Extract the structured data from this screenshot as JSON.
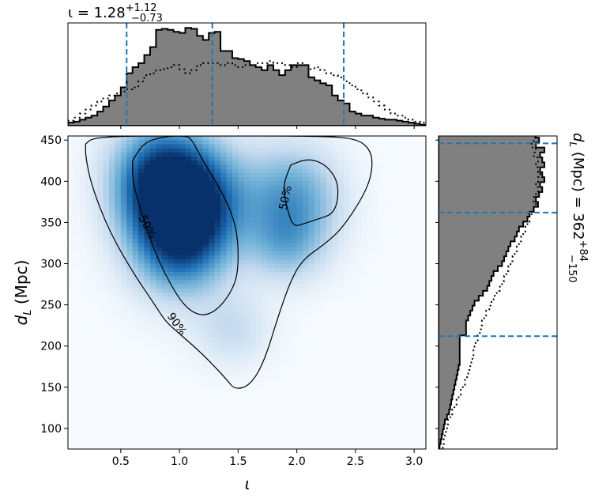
{
  "chart_data": [
    {
      "panel": "top-marginal",
      "type": "area",
      "title_prefix": "ι = 1.28",
      "title_sup": "+1.12",
      "title_sub": "−0.73",
      "xlim": [
        0.05,
        3.1
      ],
      "median": 1.28,
      "lower": 0.55,
      "upper": 2.4,
      "hist_x": [
        0.05,
        0.1,
        0.15,
        0.2,
        0.25,
        0.3,
        0.35,
        0.4,
        0.45,
        0.5,
        0.55,
        0.6,
        0.65,
        0.7,
        0.75,
        0.8,
        0.85,
        0.9,
        0.95,
        1.0,
        1.05,
        1.1,
        1.15,
        1.2,
        1.25,
        1.3,
        1.35,
        1.4,
        1.45,
        1.5,
        1.55,
        1.6,
        1.65,
        1.7,
        1.75,
        1.8,
        1.85,
        1.9,
        1.95,
        2.0,
        2.05,
        2.1,
        2.15,
        2.2,
        2.25,
        2.3,
        2.35,
        2.4,
        2.45,
        2.5,
        2.55,
        2.6,
        2.65,
        2.7,
        2.75,
        2.8,
        2.85,
        2.9,
        2.95,
        3.0,
        3.05
      ],
      "hist": [
        3,
        4,
        6,
        8,
        10,
        14,
        19,
        25,
        30,
        38,
        52,
        58,
        62,
        70,
        78,
        95,
        96,
        95,
        93,
        92,
        97,
        96,
        89,
        85,
        92,
        93,
        74,
        74,
        67,
        66,
        64,
        60,
        58,
        55,
        60,
        55,
        50,
        55,
        60,
        60,
        60,
        48,
        45,
        42,
        40,
        30,
        25,
        22,
        14,
        12,
        10,
        10,
        8,
        7,
        6,
        6,
        5,
        4,
        3,
        2,
        1
      ],
      "prior": [
        5,
        8,
        12,
        16,
        20,
        24,
        27,
        30,
        32,
        34,
        36,
        38,
        44,
        50,
        52,
        55,
        56,
        58,
        60,
        56,
        52,
        55,
        60,
        62,
        62,
        62,
        60,
        62,
        60,
        58,
        60,
        60,
        62,
        62,
        64,
        62,
        62,
        60,
        58,
        62,
        60,
        56,
        58,
        55,
        52,
        50,
        48,
        44,
        40,
        36,
        32,
        28,
        24,
        20,
        16,
        12,
        10,
        8,
        6,
        4,
        3
      ]
    },
    {
      "panel": "joint",
      "type": "heatmap",
      "xlabel": "ι",
      "ylabel": "d_L (Mpc)",
      "xlim": [
        0.05,
        3.1
      ],
      "ylim": [
        75,
        455
      ],
      "xticks": [
        0.5,
        1.0,
        1.5,
        2.0,
        2.5,
        3.0
      ],
      "xtick_labels": [
        "0.5",
        "1.0",
        "1.5",
        "2.0",
        "2.5",
        "3.0"
      ],
      "yticks": [
        100,
        150,
        200,
        250,
        300,
        350,
        400,
        450
      ],
      "ytick_labels": [
        "100",
        "150",
        "200",
        "250",
        "300",
        "350",
        "400",
        "450"
      ],
      "colormap": "Blues",
      "density_peaks": [
        {
          "x": 0.85,
          "y": 400,
          "weight": 1.0
        },
        {
          "x": 1.0,
          "y": 330,
          "weight": 0.85
        },
        {
          "x": 1.2,
          "y": 380,
          "weight": 0.55
        },
        {
          "x": 1.95,
          "y": 375,
          "weight": 0.55
        },
        {
          "x": 1.9,
          "y": 320,
          "weight": 0.25
        },
        {
          "x": 1.45,
          "y": 220,
          "weight": 0.2
        }
      ],
      "contours": [
        {
          "label": "90%",
          "points": [
            [
              0.2,
              445
            ],
            [
              0.25,
              452
            ],
            [
              0.5,
              455
            ],
            [
              1.2,
              455
            ],
            [
              2.2,
              455
            ],
            [
              2.5,
              452
            ],
            [
              2.62,
              440
            ],
            [
              2.65,
              420
            ],
            [
              2.6,
              390
            ],
            [
              2.4,
              345
            ],
            [
              2.25,
              325
            ],
            [
              2.05,
              305
            ],
            [
              1.95,
              280
            ],
            [
              1.85,
              240
            ],
            [
              1.72,
              180
            ],
            [
              1.6,
              152
            ],
            [
              1.47,
              147
            ],
            [
              1.4,
              160
            ],
            [
              1.2,
              190
            ],
            [
              1.0,
              215
            ],
            [
              0.88,
              230
            ],
            [
              0.8,
              248
            ],
            [
              0.6,
              290
            ],
            [
              0.4,
              340
            ],
            [
              0.25,
              395
            ],
            [
              0.2,
              430
            ],
            [
              0.2,
              445
            ]
          ]
        },
        {
          "label": "50%",
          "points": [
            [
              0.6,
              425
            ],
            [
              0.7,
              448
            ],
            [
              0.9,
              455
            ],
            [
              1.05,
              455
            ],
            [
              1.1,
              452
            ],
            [
              1.2,
              425
            ],
            [
              1.35,
              390
            ],
            [
              1.45,
              360
            ],
            [
              1.5,
              330
            ],
            [
              1.5,
              290
            ],
            [
              1.45,
              268
            ],
            [
              1.35,
              248
            ],
            [
              1.25,
              238
            ],
            [
              1.15,
              238
            ],
            [
              1.05,
              248
            ],
            [
              0.95,
              268
            ],
            [
              0.8,
              310
            ],
            [
              0.68,
              360
            ],
            [
              0.6,
              400
            ],
            [
              0.6,
              425
            ]
          ]
        },
        {
          "label": "50%",
          "points": [
            [
              1.95,
              420
            ],
            [
              2.1,
              428
            ],
            [
              2.25,
              420
            ],
            [
              2.35,
              400
            ],
            [
              2.35,
              375
            ],
            [
              2.3,
              360
            ],
            [
              2.2,
              355
            ],
            [
              2.05,
              348
            ],
            [
              1.97,
              345
            ],
            [
              1.92,
              365
            ],
            [
              1.88,
              395
            ],
            [
              1.95,
              420
            ]
          ]
        }
      ]
    },
    {
      "panel": "right-marginal",
      "type": "area",
      "orientation": "horizontal",
      "title_prefix": "d_L (Mpc) = 362",
      "title_sup": "+84",
      "title_sub": "−150",
      "ylim": [
        75,
        455
      ],
      "median": 362,
      "lower": 212,
      "upper": 446,
      "hist_y": [
        75,
        81,
        87,
        93,
        99,
        105,
        111,
        117,
        123,
        129,
        135,
        141,
        147,
        153,
        159,
        165,
        171,
        177,
        183,
        189,
        195,
        201,
        207,
        213,
        219,
        225,
        231,
        237,
        243,
        249,
        255,
        261,
        267,
        273,
        279,
        285,
        291,
        297,
        303,
        309,
        315,
        321,
        327,
        333,
        339,
        345,
        351,
        357,
        363,
        369,
        375,
        381,
        387,
        393,
        399,
        405,
        411,
        417,
        423,
        429,
        435,
        441,
        447,
        453
      ],
      "hist": [
        1,
        2,
        3,
        4,
        5,
        6,
        8,
        10,
        11,
        12,
        13,
        14,
        15,
        16,
        17,
        18,
        19,
        20,
        20,
        20,
        20,
        20,
        20,
        26,
        26,
        26,
        28,
        30,
        32,
        34,
        38,
        42,
        46,
        48,
        50,
        52,
        56,
        60,
        62,
        64,
        66,
        68,
        72,
        74,
        76,
        80,
        84,
        86,
        90,
        94,
        92,
        95,
        98,
        96,
        100,
        98,
        96,
        100,
        98,
        96,
        100,
        92,
        95,
        92
      ],
      "prior": [
        4,
        5,
        6,
        7,
        8,
        9,
        11,
        13,
        15,
        17,
        19,
        21,
        23,
        25,
        27,
        28,
        30,
        31,
        32,
        33,
        34,
        35,
        37,
        39,
        40,
        41,
        43,
        45,
        48,
        50,
        52,
        55,
        58,
        60,
        62,
        64,
        66,
        68,
        70,
        72,
        74,
        76,
        78,
        80,
        82,
        84,
        86,
        88,
        90,
        92,
        90,
        92,
        94,
        92,
        94,
        96,
        94,
        92,
        94,
        90,
        92,
        88,
        90,
        92
      ]
    }
  ]
}
